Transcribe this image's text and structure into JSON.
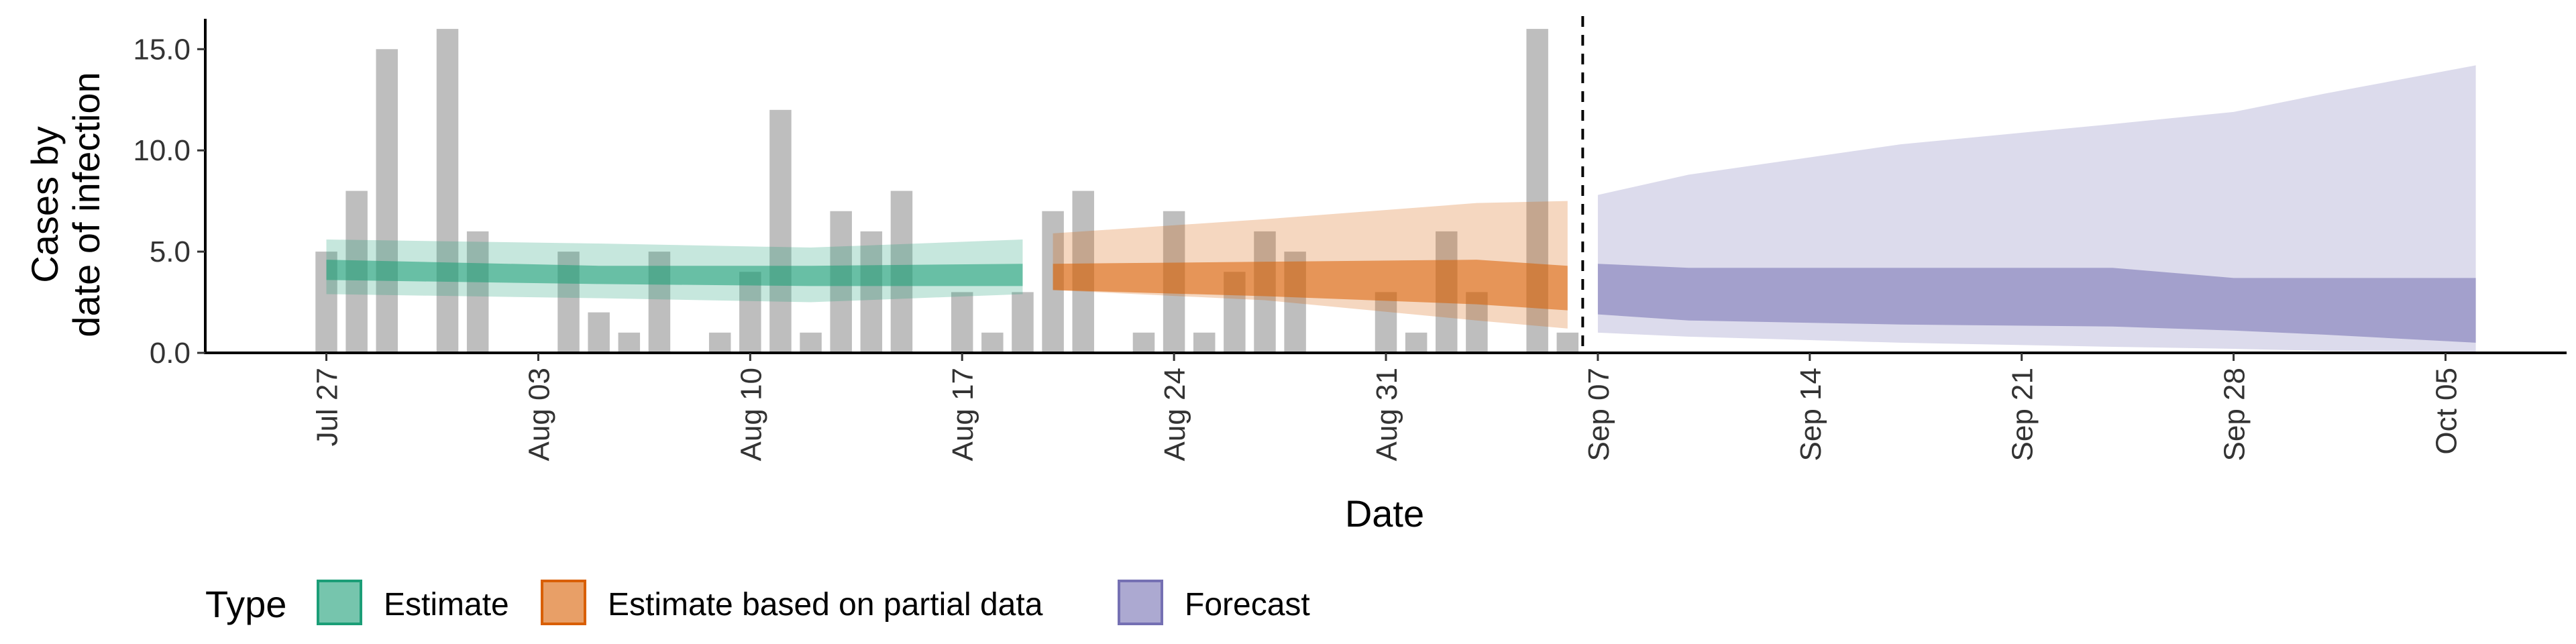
{
  "chart_data": {
    "type": "bar",
    "xlabel": "Date",
    "ylabel_lines": [
      "Cases by",
      "date of infection"
    ],
    "ylim": [
      0,
      16.5
    ],
    "y_ticks": [
      0,
      5,
      10,
      15
    ],
    "y_tick_labels": [
      "0.0",
      "5.0",
      "10.0",
      "15.0"
    ],
    "x_range": [
      "2021-07-23",
      "2021-10-09"
    ],
    "x_ticks": [
      "2021-07-27",
      "2021-08-03",
      "2021-08-10",
      "2021-08-17",
      "2021-08-24",
      "2021-08-31",
      "2021-09-07",
      "2021-09-14",
      "2021-09-21",
      "2021-09-28",
      "2021-10-05"
    ],
    "x_tick_labels": [
      "Jul 27",
      "Aug 03",
      "Aug 10",
      "Aug 17",
      "Aug 24",
      "Aug 31",
      "Sep 07",
      "Sep 14",
      "Sep 21",
      "Sep 28",
      "Oct 05"
    ],
    "forecast_date": "2021-09-06",
    "reported_cases": {
      "color": "#bebebe",
      "dates": [
        "2021-07-27",
        "2021-07-28",
        "2021-07-29",
        "2021-07-30",
        "2021-07-31",
        "2021-08-01",
        "2021-08-02",
        "2021-08-03",
        "2021-08-04",
        "2021-08-05",
        "2021-08-06",
        "2021-08-07",
        "2021-08-08",
        "2021-08-09",
        "2021-08-10",
        "2021-08-11",
        "2021-08-12",
        "2021-08-13",
        "2021-08-14",
        "2021-08-15",
        "2021-08-16",
        "2021-08-17",
        "2021-08-18",
        "2021-08-19",
        "2021-08-20",
        "2021-08-21",
        "2021-08-22",
        "2021-08-23",
        "2021-08-24",
        "2021-08-25",
        "2021-08-26",
        "2021-08-27",
        "2021-08-28",
        "2021-08-29",
        "2021-08-30",
        "2021-08-31",
        "2021-09-01",
        "2021-09-02",
        "2021-09-03",
        "2021-09-04",
        "2021-09-05",
        "2021-09-06"
      ],
      "values": [
        5,
        8,
        15,
        0,
        16,
        6,
        0,
        0,
        5,
        2,
        1,
        5,
        0,
        1,
        4,
        12,
        1,
        7,
        6,
        8,
        0,
        3,
        1,
        3,
        7,
        8,
        0,
        1,
        7,
        1,
        4,
        6,
        5,
        0,
        0,
        3,
        1,
        6,
        3,
        0,
        16,
        1
      ]
    },
    "series": [
      {
        "name": "Estimate",
        "color": "#1b9e77",
        "dates": [
          "2021-07-27",
          "2021-08-05",
          "2021-08-12",
          "2021-08-19"
        ],
        "lower_outer": [
          2.9,
          2.7,
          2.5,
          2.9
        ],
        "lower_inner": [
          3.6,
          3.4,
          3.3,
          3.3
        ],
        "upper_inner": [
          4.6,
          4.3,
          4.3,
          4.4
        ],
        "upper_outer": [
          5.6,
          5.4,
          5.2,
          5.6
        ]
      },
      {
        "name": "Estimate based on partial data",
        "color": "#d95f02",
        "dates": [
          "2021-08-20",
          "2021-08-27",
          "2021-09-03",
          "2021-09-06"
        ],
        "lower_outer": [
          3.1,
          2.6,
          1.6,
          1.2
        ],
        "lower_inner": [
          3.1,
          2.8,
          2.4,
          2.1
        ],
        "upper_inner": [
          4.4,
          4.5,
          4.6,
          4.3
        ],
        "upper_outer": [
          5.9,
          6.6,
          7.4,
          7.5
        ]
      },
      {
        "name": "Forecast",
        "color": "#7570b3",
        "dates": [
          "2021-09-07",
          "2021-09-10",
          "2021-09-17",
          "2021-09-24",
          "2021-09-28",
          "2021-10-01",
          "2021-10-06"
        ],
        "lower_outer": [
          1.0,
          0.8,
          0.5,
          0.3,
          0.2,
          0.1,
          0.05
        ],
        "lower_inner": [
          1.9,
          1.6,
          1.4,
          1.3,
          1.1,
          0.9,
          0.5
        ],
        "upper_inner": [
          4.4,
          4.2,
          4.2,
          4.2,
          3.7,
          3.7,
          3.7
        ],
        "upper_outer": [
          7.8,
          8.8,
          10.3,
          11.3,
          11.9,
          12.8,
          14.2
        ]
      }
    ],
    "legend": {
      "title": "Type",
      "position": "bottom",
      "items": [
        "Estimate",
        "Estimate based on partial data",
        "Forecast"
      ]
    }
  }
}
